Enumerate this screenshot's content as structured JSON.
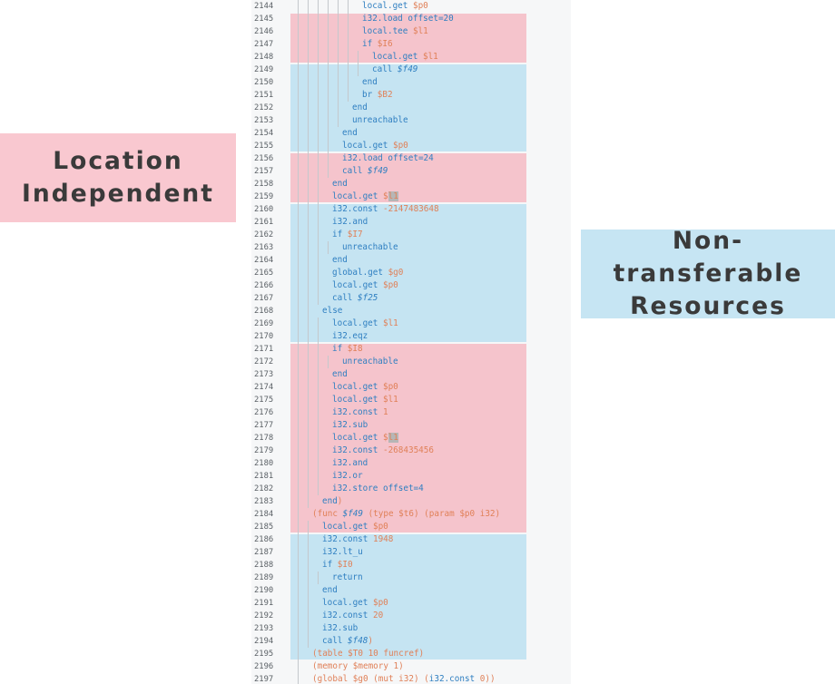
{
  "labels": {
    "left": [
      "Location",
      "Independent"
    ],
    "right": [
      "Non-transferable",
      "Resources"
    ]
  },
  "colors": {
    "pink_region": "#f5c4cc",
    "blue_region": "#c5e4f2",
    "keyword": "#2f7fc1",
    "variable": "#e08058"
  },
  "regions": [
    {
      "color": "pink",
      "from_line": 2145,
      "to_line": 2148
    },
    {
      "color": "blue",
      "from_line": 2149,
      "to_line": 2155
    },
    {
      "color": "pink",
      "from_line": 2156,
      "to_line": 2159
    },
    {
      "color": "blue",
      "from_line": 2160,
      "to_line": 2170
    },
    {
      "color": "pink",
      "from_line": 2171,
      "to_line": 2185
    },
    {
      "color": "blue",
      "from_line": 2186,
      "to_line": 2195
    }
  ],
  "lines": [
    {
      "num": "2144",
      "indent": 6,
      "tokens": [
        [
          "local.get ",
          "kw"
        ],
        [
          "$p0",
          "vr"
        ]
      ]
    },
    {
      "num": "2145",
      "indent": 6,
      "tokens": [
        [
          "i32.load offset=20",
          "kw"
        ]
      ]
    },
    {
      "num": "2146",
      "indent": 6,
      "tokens": [
        [
          "local.tee ",
          "kw"
        ],
        [
          "$l1",
          "vr"
        ]
      ]
    },
    {
      "num": "2147",
      "indent": 6,
      "tokens": [
        [
          "if ",
          "kw"
        ],
        [
          "$I6",
          "vr"
        ]
      ]
    },
    {
      "num": "2148",
      "indent": 7,
      "tokens": [
        [
          "local.get ",
          "kw"
        ],
        [
          "$l1",
          "vr"
        ]
      ]
    },
    {
      "num": "2149",
      "indent": 7,
      "tokens": [
        [
          "call ",
          "kw"
        ],
        [
          "$f49",
          "fn"
        ]
      ]
    },
    {
      "num": "2150",
      "indent": 6,
      "tokens": [
        [
          "end",
          "kw"
        ]
      ]
    },
    {
      "num": "2151",
      "indent": 6,
      "tokens": [
        [
          "br ",
          "kw"
        ],
        [
          "$B2",
          "vr"
        ]
      ]
    },
    {
      "num": "2152",
      "indent": 5,
      "tokens": [
        [
          "end",
          "kw"
        ]
      ]
    },
    {
      "num": "2153",
      "indent": 5,
      "tokens": [
        [
          "unreachable",
          "kw"
        ]
      ]
    },
    {
      "num": "2154",
      "indent": 4,
      "tokens": [
        [
          "end",
          "kw"
        ]
      ]
    },
    {
      "num": "2155",
      "indent": 4,
      "tokens": [
        [
          "local.get ",
          "kw"
        ],
        [
          "$p0",
          "vr"
        ]
      ]
    },
    {
      "num": "2156",
      "indent": 4,
      "tokens": [
        [
          "i32.load offset=24",
          "kw"
        ]
      ]
    },
    {
      "num": "2157",
      "indent": 4,
      "tokens": [
        [
          "call ",
          "kw"
        ],
        [
          "$f49",
          "fn"
        ]
      ]
    },
    {
      "num": "2158",
      "indent": 3,
      "tokens": [
        [
          "end",
          "kw"
        ]
      ]
    },
    {
      "num": "2159",
      "indent": 3,
      "tokens": [
        [
          "local.get ",
          "kw"
        ],
        [
          "$",
          "vr"
        ],
        [
          "l1",
          "cursor"
        ]
      ]
    },
    {
      "num": "2160",
      "indent": 3,
      "tokens": [
        [
          "i32.const ",
          "kw"
        ],
        [
          "-2147483648",
          "vr"
        ]
      ]
    },
    {
      "num": "2161",
      "indent": 3,
      "tokens": [
        [
          "i32.and",
          "kw"
        ]
      ]
    },
    {
      "num": "2162",
      "indent": 3,
      "tokens": [
        [
          "if ",
          "kw"
        ],
        [
          "$I7",
          "vr"
        ]
      ]
    },
    {
      "num": "2163",
      "indent": 4,
      "tokens": [
        [
          "unreachable",
          "kw"
        ]
      ]
    },
    {
      "num": "2164",
      "indent": 3,
      "tokens": [
        [
          "end",
          "kw"
        ]
      ]
    },
    {
      "num": "2165",
      "indent": 3,
      "tokens": [
        [
          "global.get ",
          "kw"
        ],
        [
          "$g0",
          "vr"
        ]
      ]
    },
    {
      "num": "2166",
      "indent": 3,
      "tokens": [
        [
          "local.get ",
          "kw"
        ],
        [
          "$p0",
          "vr"
        ]
      ]
    },
    {
      "num": "2167",
      "indent": 3,
      "tokens": [
        [
          "call ",
          "kw"
        ],
        [
          "$f25",
          "fn"
        ]
      ]
    },
    {
      "num": "2168",
      "indent": 2,
      "tokens": [
        [
          "else",
          "kw"
        ]
      ]
    },
    {
      "num": "2169",
      "indent": 3,
      "tokens": [
        [
          "local.get ",
          "kw"
        ],
        [
          "$l1",
          "vr"
        ]
      ]
    },
    {
      "num": "2170",
      "indent": 3,
      "tokens": [
        [
          "i32.eqz",
          "kw"
        ]
      ]
    },
    {
      "num": "2171",
      "indent": 3,
      "tokens": [
        [
          "if ",
          "kw"
        ],
        [
          "$I8",
          "vr"
        ]
      ]
    },
    {
      "num": "2172",
      "indent": 4,
      "tokens": [
        [
          "unreachable",
          "kw"
        ]
      ]
    },
    {
      "num": "2173",
      "indent": 3,
      "tokens": [
        [
          "end",
          "kw"
        ]
      ]
    },
    {
      "num": "2174",
      "indent": 3,
      "tokens": [
        [
          "local.get ",
          "kw"
        ],
        [
          "$p0",
          "vr"
        ]
      ]
    },
    {
      "num": "2175",
      "indent": 3,
      "tokens": [
        [
          "local.get ",
          "kw"
        ],
        [
          "$l1",
          "vr"
        ]
      ]
    },
    {
      "num": "2176",
      "indent": 3,
      "tokens": [
        [
          "i32.const ",
          "kw"
        ],
        [
          "1",
          "vr"
        ]
      ]
    },
    {
      "num": "2177",
      "indent": 3,
      "tokens": [
        [
          "i32.sub",
          "kw"
        ]
      ]
    },
    {
      "num": "2178",
      "indent": 3,
      "tokens": [
        [
          "local.get ",
          "kw"
        ],
        [
          "$",
          "vr"
        ],
        [
          "l1",
          "cursor"
        ]
      ]
    },
    {
      "num": "2179",
      "indent": 3,
      "tokens": [
        [
          "i32.const ",
          "kw"
        ],
        [
          "-268435456",
          "vr"
        ]
      ]
    },
    {
      "num": "2180",
      "indent": 3,
      "tokens": [
        [
          "i32.and",
          "kw"
        ]
      ]
    },
    {
      "num": "2181",
      "indent": 3,
      "tokens": [
        [
          "i32.or",
          "kw"
        ]
      ]
    },
    {
      "num": "2182",
      "indent": 3,
      "tokens": [
        [
          "i32.store offset=4",
          "kw"
        ]
      ]
    },
    {
      "num": "2183",
      "indent": 2,
      "tokens": [
        [
          "end",
          "kw"
        ],
        [
          ")",
          "vr"
        ]
      ]
    },
    {
      "num": "2184",
      "indent": 1,
      "tokens": [
        [
          "(func ",
          "vr"
        ],
        [
          "$f49",
          "fn"
        ],
        [
          " (type $t6) (param $p0 i32)",
          "vr"
        ]
      ]
    },
    {
      "num": "2185",
      "indent": 2,
      "tokens": [
        [
          "local.get ",
          "kw"
        ],
        [
          "$p0",
          "vr"
        ]
      ]
    },
    {
      "num": "2186",
      "indent": 2,
      "tokens": [
        [
          "i32.const ",
          "kw"
        ],
        [
          "1948",
          "vr"
        ]
      ]
    },
    {
      "num": "2187",
      "indent": 2,
      "tokens": [
        [
          "i32.lt_u",
          "kw"
        ]
      ]
    },
    {
      "num": "2188",
      "indent": 2,
      "tokens": [
        [
          "if ",
          "kw"
        ],
        [
          "$I0",
          "vr"
        ]
      ]
    },
    {
      "num": "2189",
      "indent": 3,
      "tokens": [
        [
          "return",
          "kw"
        ]
      ]
    },
    {
      "num": "2190",
      "indent": 2,
      "tokens": [
        [
          "end",
          "kw"
        ]
      ]
    },
    {
      "num": "2191",
      "indent": 2,
      "tokens": [
        [
          "local.get ",
          "kw"
        ],
        [
          "$p0",
          "vr"
        ]
      ]
    },
    {
      "num": "2192",
      "indent": 2,
      "tokens": [
        [
          "i32.const ",
          "kw"
        ],
        [
          "20",
          "vr"
        ]
      ]
    },
    {
      "num": "2193",
      "indent": 2,
      "tokens": [
        [
          "i32.sub",
          "kw"
        ]
      ]
    },
    {
      "num": "2194",
      "indent": 2,
      "tokens": [
        [
          "call ",
          "kw"
        ],
        [
          "$f48",
          "fn"
        ],
        [
          ")",
          "vr"
        ]
      ]
    },
    {
      "num": "2195",
      "indent": 1,
      "tokens": [
        [
          "(table $T0 10 funcref)",
          "vr"
        ]
      ]
    },
    {
      "num": "2196",
      "indent": 1,
      "tokens": [
        [
          "(memory $memory 1)",
          "vr"
        ]
      ]
    },
    {
      "num": "2197",
      "indent": 1,
      "tokens": [
        [
          "(global ",
          "vr"
        ],
        [
          "$g0",
          "vr"
        ],
        [
          " (mut ",
          "vr"
        ],
        [
          "i32",
          "vr"
        ],
        [
          ") (",
          "vr"
        ],
        [
          "i32.const ",
          "kw"
        ],
        [
          "0",
          "vr"
        ],
        [
          "))",
          "vr"
        ]
      ]
    }
  ]
}
